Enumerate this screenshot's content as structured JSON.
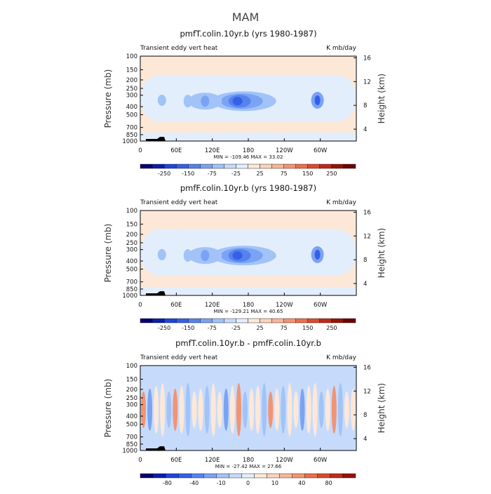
{
  "figure": {
    "title": "MAM"
  },
  "chart_data": [
    {
      "type": "heatmap",
      "title": "pmfT.colin.10yr.b (yrs 1980-1987)",
      "left_label": "Transient eddy vert heat",
      "right_label": "K mb/day",
      "xlabel": "",
      "ylabel": "Pressure (mb)",
      "ylabel_right": "Height (km)",
      "x_range": [
        0,
        360
      ],
      "x_ticks": [
        "0",
        "60E",
        "120E",
        "180",
        "120W",
        "60W"
      ],
      "y_ticks": [
        "100",
        "150",
        "200",
        "250",
        "300",
        "400",
        "500",
        "700",
        "850",
        "1000"
      ],
      "y_ticks_right": [
        "16",
        "12",
        "8",
        "4"
      ],
      "minmax": "MIN = -109.46   MAX =  33.02",
      "levels": [
        -250,
        -150,
        -75,
        -25,
        25,
        75,
        150,
        250
      ],
      "colorbar_labels": [
        "-250",
        "-150",
        "-75",
        "-25",
        "25",
        "75",
        "150",
        "250"
      ],
      "colorbar_colors": [
        "#08006e",
        "#0c1eaa",
        "#1f45dc",
        "#3560e6",
        "#5582ee",
        "#7aa3f3",
        "#a2c3f8",
        "#c6dbfb",
        "#e3eefc",
        "#fde8d8",
        "#fbd3bc",
        "#f7b698",
        "#f29473",
        "#ea6e4d",
        "#dc4a2e",
        "#c02a1a",
        "#961408",
        "#6b0303"
      ],
      "max_value": 33.02,
      "min_value": -109.46
    },
    {
      "type": "heatmap",
      "title": "pmfF.colin.10yr.b (yrs 1980-1987)",
      "left_label": "Transient eddy vert heat",
      "right_label": "K mb/day",
      "xlabel": "",
      "ylabel": "Pressure (mb)",
      "ylabel_right": "Height (km)",
      "x_range": [
        0,
        360
      ],
      "x_ticks": [
        "0",
        "60E",
        "120E",
        "180",
        "120W",
        "60W"
      ],
      "y_ticks": [
        "100",
        "150",
        "200",
        "250",
        "300",
        "400",
        "500",
        "700",
        "850",
        "1000"
      ],
      "y_ticks_right": [
        "16",
        "12",
        "8",
        "4"
      ],
      "minmax": "MIN = -129.21   MAX =  40.65",
      "levels": [
        -250,
        -150,
        -75,
        -25,
        25,
        75,
        150,
        250
      ],
      "colorbar_labels": [
        "-250",
        "-150",
        "-75",
        "-25",
        "25",
        "75",
        "150",
        "250"
      ],
      "colorbar_colors": [
        "#08006e",
        "#0c1eaa",
        "#1f45dc",
        "#3560e6",
        "#5582ee",
        "#7aa3f3",
        "#a2c3f8",
        "#c6dbfb",
        "#e3eefc",
        "#fde8d8",
        "#fbd3bc",
        "#f7b698",
        "#f29473",
        "#ea6e4d",
        "#dc4a2e",
        "#c02a1a",
        "#961408",
        "#6b0303"
      ],
      "max_value": 40.65,
      "min_value": -129.21
    },
    {
      "type": "heatmap",
      "title": "pmfT.colin.10yr.b - pmfF.colin.10yr.b",
      "left_label": "Transient eddy vert heat",
      "right_label": "K mb/day",
      "xlabel": "",
      "ylabel": "Pressure (mb)",
      "ylabel_right": "Height (km)",
      "x_range": [
        0,
        360
      ],
      "x_ticks": [
        "0",
        "60E",
        "120E",
        "180",
        "120W",
        "60W"
      ],
      "y_ticks": [
        "100",
        "150",
        "200",
        "250",
        "300",
        "400",
        "500",
        "700",
        "850",
        "1000"
      ],
      "y_ticks_right": [
        "16",
        "12",
        "8",
        "4"
      ],
      "minmax": "MIN = -27.42   MAX =  27.66",
      "levels": [
        -80,
        -40,
        -10,
        0,
        10,
        40,
        80
      ],
      "colorbar_labels": [
        "-80",
        "-40",
        "-10",
        "0",
        "10",
        "40",
        "80"
      ],
      "colorbar_colors": [
        "#08006e",
        "#0c1eaa",
        "#1f45dc",
        "#3560e6",
        "#5582ee",
        "#7aa3f3",
        "#a2c3f8",
        "#c6dbfb",
        "#e3eefc",
        "#fde8d8",
        "#fbd3bc",
        "#f7b698",
        "#f29473",
        "#ea6e4d",
        "#dc4a2e",
        "#c02a1a",
        "#961408"
      ],
      "max_value": 27.66,
      "min_value": -27.42
    }
  ]
}
